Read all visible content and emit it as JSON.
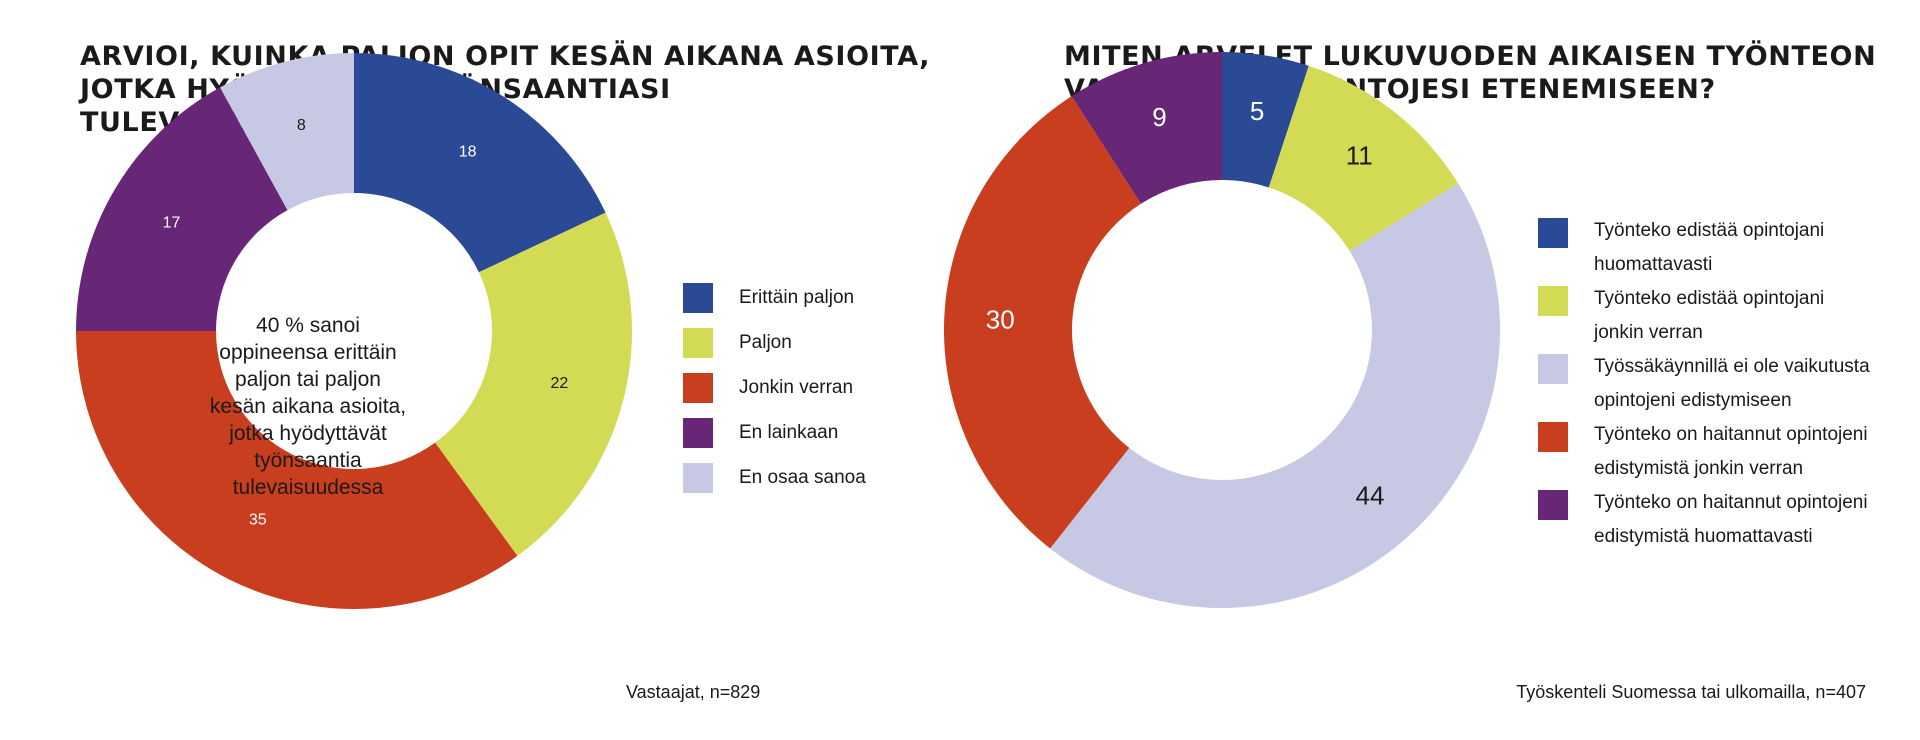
{
  "chart_data": [
    {
      "type": "pie",
      "title": "ARVIOI, KUINKA PALJON OPIT KESÄN AIKANA ASIOITA, JOTKA HYÖDYTTÄVÄT TYÖNSAANTIASI TULEVAISUUDESSA",
      "categories": [
        "Erittäin paljon",
        "Paljon",
        "Jonkin verran",
        "En lainkaan",
        "En osaa sanoa"
      ],
      "values": [
        18,
        22,
        35,
        17,
        8
      ],
      "colors": [
        "#2b4a95",
        "#d3da53",
        "#c83e1e",
        "#672676",
        "#c7c8e4"
      ],
      "label_colors": [
        "#ffffff",
        "#1a1a1a",
        "#ffffff",
        "#ffffff",
        "#1a1a1a"
      ],
      "center_text": "40 % sanoi oppineensa erittäin paljon tai paljon kesän aikana asioita, jotka hyödyttävät työnsaantia tulevaisuudessa",
      "note": "Vastaajat, n=829",
      "legend_position": "right"
    },
    {
      "type": "pie",
      "title": "MITEN ARVELET LUKUVUODEN AIKAISEN TYÖNTEON VAIKUTTAVAN OPINTOJESI ETENEMISEEN?",
      "categories": [
        "Työnteko edistää opintojani huomattavasti",
        "Työnteko edistää opintojani jonkin verran",
        "Työssäkäynnillä ei ole vaikutusta opintojeni edistymiseen",
        "Työnteko on haitannut opintojeni edistymistä jonkin verran",
        "Työnteko on haitannut opintojeni edistymistä huomattavasti"
      ],
      "values": [
        5,
        11,
        44,
        30,
        9
      ],
      "colors": [
        "#2b4a95",
        "#d3da53",
        "#c7c8e4",
        "#c83e1e",
        "#672676"
      ],
      "label_colors": [
        "#ffffff",
        "#1a1a1a",
        "#1a1a1a",
        "#ffffff",
        "#ffffff"
      ],
      "note": "Työskenteli Suomessa tai  ulkomailla, n=407",
      "legend_position": "right"
    }
  ]
}
